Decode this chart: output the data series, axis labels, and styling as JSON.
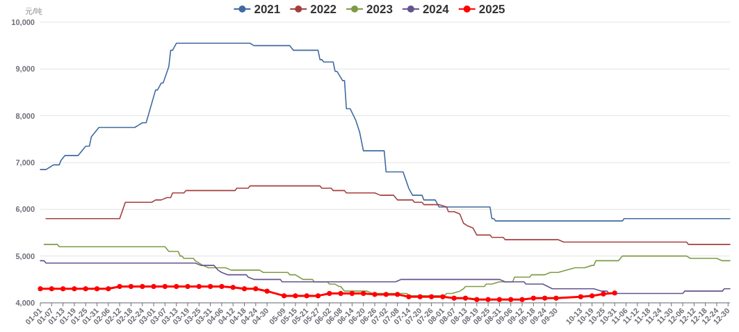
{
  "chart_data": {
    "type": "line",
    "ylabel": "元/吨",
    "grid": "y",
    "legend": "top",
    "marker": "none",
    "ylim": [
      4000,
      10000
    ],
    "yticks": [
      {
        "value": 4000,
        "label": "4,000"
      },
      {
        "value": 5000,
        "label": "5,000"
      },
      {
        "value": 6000,
        "label": "6,000"
      },
      {
        "value": 7000,
        "label": "7,000"
      },
      {
        "value": 8000,
        "label": "8,000"
      },
      {
        "value": 9000,
        "label": "9,000"
      },
      {
        "value": 10000,
        "label": "10,000"
      }
    ],
    "xlim": [
      "--01-01",
      "--12-31"
    ],
    "xticks": [
      {
        "value": "--01-01",
        "label": "01-01"
      },
      {
        "value": "--01-07",
        "label": "01-07"
      },
      {
        "value": "--01-13",
        "label": "01-13"
      },
      {
        "value": "--01-19",
        "label": "01-19"
      },
      {
        "value": "--01-25",
        "label": "01-25"
      },
      {
        "value": "--01-31",
        "label": "01-31"
      },
      {
        "value": "--02-06",
        "label": "02-06"
      },
      {
        "value": "--02-12",
        "label": "02-12"
      },
      {
        "value": "--02-18",
        "label": "02-18"
      },
      {
        "value": "--02-24",
        "label": "02-24"
      },
      {
        "value": "--03-01",
        "label": "03-01"
      },
      {
        "value": "--03-07",
        "label": "03-07"
      },
      {
        "value": "--03-13",
        "label": "03-13"
      },
      {
        "value": "--03-19",
        "label": "03-19"
      },
      {
        "value": "--03-25",
        "label": "03-25"
      },
      {
        "value": "--03-31",
        "label": "03-31"
      },
      {
        "value": "--04-06",
        "label": "04-06"
      },
      {
        "value": "--04-12",
        "label": "04-12"
      },
      {
        "value": "--04-18",
        "label": "04-18"
      },
      {
        "value": "--04-24",
        "label": "04-24"
      },
      {
        "value": "--04-30",
        "label": "04-30"
      },
      {
        "value": "--05-09",
        "label": "05-09"
      },
      {
        "value": "--05-15",
        "label": "05-15"
      },
      {
        "value": "--05-21",
        "label": "05-21"
      },
      {
        "value": "--05-27",
        "label": "05-27"
      },
      {
        "value": "--06-02",
        "label": "06-02"
      },
      {
        "value": "--06-08",
        "label": "06-08"
      },
      {
        "value": "--06-14",
        "label": "06-14"
      },
      {
        "value": "--06-20",
        "label": "06-20"
      },
      {
        "value": "--06-26",
        "label": "06-26"
      },
      {
        "value": "--07-02",
        "label": "07-02"
      },
      {
        "value": "--07-08",
        "label": "07-08"
      },
      {
        "value": "--07-14",
        "label": "07-14"
      },
      {
        "value": "--07-20",
        "label": "07-20"
      },
      {
        "value": "--07-26",
        "label": "07-26"
      },
      {
        "value": "--08-01",
        "label": "08-01"
      },
      {
        "value": "--08-07",
        "label": "08-07"
      },
      {
        "value": "--08-13",
        "label": "08-13"
      },
      {
        "value": "--08-19",
        "label": "08-19"
      },
      {
        "value": "--08-25",
        "label": "08-25"
      },
      {
        "value": "--08-31",
        "label": "08-31"
      },
      {
        "value": "--09-06",
        "label": "09-06"
      },
      {
        "value": "--09-12",
        "label": "09-12"
      },
      {
        "value": "--09-18",
        "label": "09-18"
      },
      {
        "value": "--09-24",
        "label": "09-24"
      },
      {
        "value": "--09-30",
        "label": "09-30"
      },
      {
        "value": "--10-13",
        "label": "10-13"
      },
      {
        "value": "--10-19",
        "label": "10-19"
      },
      {
        "value": "--10-25",
        "label": "10-25"
      },
      {
        "value": "--10-31",
        "label": "10-31"
      },
      {
        "value": "--11-06",
        "label": "11-06"
      },
      {
        "value": "--11-12",
        "label": "11-12"
      },
      {
        "value": "--11-18",
        "label": "11-18"
      },
      {
        "value": "--11-24",
        "label": "11-24"
      },
      {
        "value": "--11-30",
        "label": "11-30"
      },
      {
        "value": "--12-06",
        "label": "12-06"
      },
      {
        "value": "--12-12",
        "label": "12-12"
      },
      {
        "value": "--12-18",
        "label": "12-18"
      },
      {
        "value": "--12-24",
        "label": "12-24"
      },
      {
        "value": "--12-30",
        "label": "12-30"
      }
    ],
    "series": [
      {
        "name": "2021",
        "color": "#3e6a9f",
        "x": [
          "--01-01",
          "--01-04",
          "--01-06",
          "--01-08",
          "--01-11",
          "--01-12",
          "--01-14",
          "--01-21",
          "--01-25",
          "--01-27",
          "--01-28",
          "--02-01",
          "--02-20",
          "--02-22",
          "--02-24",
          "--02-26",
          "--03-02",
          "--03-03",
          "--03-05",
          "--03-06",
          "--03-09",
          "--03-10",
          "--03-11",
          "--03-13",
          "--04-21",
          "--04-23",
          "--05-12",
          "--05-14",
          "--05-27",
          "--05-28",
          "--05-29",
          "--05-30",
          "--06-04",
          "--06-05",
          "--06-06",
          "--06-09",
          "--06-10",
          "--06-11",
          "--06-13",
          "--06-16",
          "--06-18",
          "--06-20",
          "--07-01",
          "--07-02",
          "--07-11",
          "--07-14",
          "--07-16",
          "--07-21",
          "--07-22",
          "--07-28",
          "--07-30",
          "--08-26",
          "--08-27",
          "--08-28",
          "--08-29",
          "--11-04",
          "--11-05",
          "--12-31"
        ],
        "values": [
          6850,
          6850,
          6900,
          6950,
          6950,
          7050,
          7150,
          7150,
          7350,
          7350,
          7550,
          7750,
          7750,
          7800,
          7850,
          7850,
          8550,
          8550,
          8700,
          8700,
          9050,
          9400,
          9400,
          9550,
          9550,
          9500,
          9500,
          9400,
          9400,
          9200,
          9200,
          9150,
          9150,
          8950,
          8950,
          8750,
          8750,
          8150,
          8150,
          7900,
          7650,
          7250,
          7250,
          6800,
          6800,
          6450,
          6300,
          6300,
          6200,
          6200,
          6050,
          6050,
          5800,
          5800,
          5750,
          5750,
          5800,
          5800
        ]
      },
      {
        "name": "2022",
        "color": "#a33f3d",
        "x": [
          "--01-04",
          "--02-12",
          "--02-15",
          "--02-29",
          "--03-02",
          "--03-05",
          "--03-08",
          "--03-10",
          "--03-11",
          "--03-17",
          "--03-18",
          "--04-13",
          "--04-14",
          "--04-20",
          "--04-21",
          "--05-28",
          "--05-29",
          "--06-03",
          "--06-04",
          "--06-10",
          "--06-11",
          "--06-26",
          "--06-29",
          "--07-06",
          "--07-08",
          "--07-16",
          "--07-17",
          "--07-21",
          "--07-22",
          "--07-30",
          "--08-03",
          "--08-04",
          "--08-07",
          "--08-10",
          "--08-12",
          "--08-14",
          "--08-17",
          "--08-19",
          "--08-26",
          "--08-27",
          "--09-02",
          "--09-03",
          "--10-01",
          "--10-04",
          "--12-08",
          "--12-09",
          "--12-31"
        ],
        "values": [
          5800,
          5800,
          6150,
          6150,
          6200,
          6200,
          6250,
          6250,
          6350,
          6350,
          6400,
          6400,
          6450,
          6450,
          6500,
          6500,
          6450,
          6450,
          6400,
          6400,
          6350,
          6350,
          6300,
          6300,
          6200,
          6200,
          6150,
          6150,
          6100,
          6100,
          6050,
          5950,
          5950,
          5900,
          5700,
          5650,
          5600,
          5450,
          5450,
          5400,
          5400,
          5350,
          5350,
          5300,
          5300,
          5250,
          5250
        ]
      },
      {
        "name": "2023",
        "color": "#7d9b45",
        "x": [
          "--01-03",
          "--01-10",
          "--01-11",
          "--03-07",
          "--03-09",
          "--03-14",
          "--03-15",
          "--03-16",
          "--03-17",
          "--03-22",
          "--03-23",
          "--03-25",
          "--03-27",
          "--03-30",
          "--04-08",
          "--04-11",
          "--04-26",
          "--04-28",
          "--05-11",
          "--05-12",
          "--05-15",
          "--05-17",
          "--05-19",
          "--05-24",
          "--05-25",
          "--06-01",
          "--06-02",
          "--06-05",
          "--06-07",
          "--06-08",
          "--06-10",
          "--06-22",
          "--06-25",
          "--07-13",
          "--07-14",
          "--08-02",
          "--08-03",
          "--08-06",
          "--08-10",
          "--08-12",
          "--08-13",
          "--08-23",
          "--08-24",
          "--08-27",
          "--08-31",
          "--09-07",
          "--09-08",
          "--09-16",
          "--09-17",
          "--09-24",
          "--09-27",
          "--10-01",
          "--10-10",
          "--10-15",
          "--10-19",
          "--10-20",
          "--10-21",
          "--11-02",
          "--11-04",
          "--12-08",
          "--12-10",
          "--12-24",
          "--12-27",
          "--12-31"
        ],
        "values": [
          5250,
          5250,
          5200,
          5200,
          5100,
          5100,
          5000,
          5000,
          4950,
          4950,
          4900,
          4850,
          4800,
          4750,
          4750,
          4700,
          4700,
          4650,
          4650,
          4600,
          4600,
          4550,
          4500,
          4500,
          4450,
          4450,
          4400,
          4400,
          4350,
          4350,
          4250,
          4250,
          4200,
          4200,
          4150,
          4150,
          4200,
          4200,
          4250,
          4300,
          4350,
          4350,
          4400,
          4400,
          4450,
          4450,
          4550,
          4550,
          4600,
          4600,
          4650,
          4650,
          4750,
          4750,
          4800,
          4800,
          4900,
          4900,
          5000,
          5000,
          4950,
          4950,
          4900,
          4900
        ]
      },
      {
        "name": "2024",
        "color": "#64528f",
        "x": [
          "--01-01",
          "--01-03",
          "--01-04",
          "--03-23",
          "--03-26",
          "--04-02",
          "--04-04",
          "--04-06",
          "--04-09",
          "--04-19",
          "--04-20",
          "--04-23",
          "--05-07",
          "--05-08",
          "--07-07",
          "--07-10",
          "--08-31",
          "--09-03",
          "--09-13",
          "--09-14",
          "--09-23",
          "--09-28",
          "--10-20",
          "--10-24",
          "--10-27",
          "--10-28",
          "--12-06",
          "--12-07",
          "--12-27",
          "--12-28",
          "--12-31"
        ],
        "values": [
          4900,
          4900,
          4850,
          4850,
          4800,
          4800,
          4700,
          4650,
          4600,
          4600,
          4550,
          4500,
          4500,
          4450,
          4450,
          4500,
          4500,
          4450,
          4450,
          4400,
          4400,
          4300,
          4300,
          4250,
          4250,
          4200,
          4200,
          4250,
          4250,
          4300,
          4300
        ]
      },
      {
        "name": "2025",
        "color": "#ff0000",
        "marker": "circle",
        "x": [
          "--01-01",
          "--01-07",
          "--01-13",
          "--01-19",
          "--01-25",
          "--01-31",
          "--02-06",
          "--02-12",
          "--02-18",
          "--02-24",
          "--03-01",
          "--03-07",
          "--03-13",
          "--03-19",
          "--03-25",
          "--03-31",
          "--04-06",
          "--04-12",
          "--04-18",
          "--04-24",
          "--04-30",
          "--05-09",
          "--05-15",
          "--05-21",
          "--05-27",
          "--06-02",
          "--06-08",
          "--06-14",
          "--06-20",
          "--06-26",
          "--07-02",
          "--07-08",
          "--07-14",
          "--07-20",
          "--07-26",
          "--08-01",
          "--08-07",
          "--08-13",
          "--08-19",
          "--08-25",
          "--08-31",
          "--09-06",
          "--09-12",
          "--09-18",
          "--09-24",
          "--09-30",
          "--10-13",
          "--10-19",
          "--10-25",
          "--10-31"
        ],
        "values": [
          4300,
          4300,
          4300,
          4300,
          4300,
          4300,
          4300,
          4350,
          4350,
          4350,
          4350,
          4350,
          4350,
          4350,
          4350,
          4350,
          4350,
          4330,
          4300,
          4300,
          4250,
          4150,
          4150,
          4150,
          4150,
          4200,
          4200,
          4200,
          4200,
          4180,
          4180,
          4180,
          4130,
          4130,
          4130,
          4130,
          4100,
          4100,
          4070,
          4070,
          4070,
          4070,
          4070,
          4100,
          4100,
          4100,
          4130,
          4150,
          4190,
          4210
        ]
      }
    ]
  }
}
